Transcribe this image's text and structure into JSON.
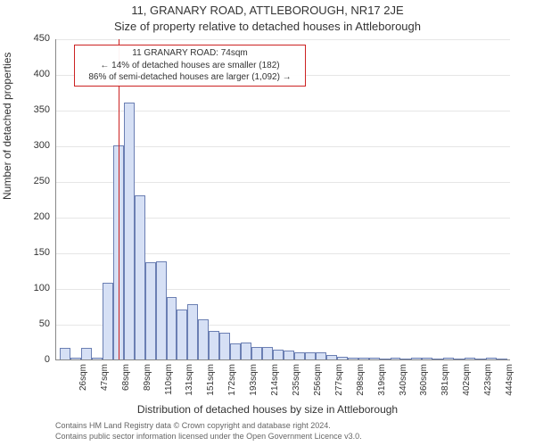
{
  "title1": "11, GRANARY ROAD, ATTLEBOROUGH, NR17 2JE",
  "title2": "Size of property relative to detached houses in Attleborough",
  "ylabel": "Number of detached properties",
  "xlabel": "Distribution of detached houses by size in Attleborough",
  "chart": {
    "type": "histogram",
    "ylim": [
      0,
      450
    ],
    "ytick_step": 50,
    "yticks": [
      0,
      50,
      100,
      150,
      200,
      250,
      300,
      350,
      400,
      450
    ],
    "bar_fill": "#d6e0f5",
    "bar_stroke": "#6b7fb3",
    "grid_color": "#e6e6e6",
    "axis_color": "#888888",
    "background": "#ffffff",
    "label_fontsize": 11,
    "title_fontsize": 13,
    "marker_x": 74,
    "marker_color": "#cc2222",
    "x_start": 16,
    "x_step": 10.5,
    "bar_count": 42,
    "values": [
      16,
      2,
      16,
      2,
      108,
      300,
      360,
      230,
      136,
      138,
      88,
      70,
      78,
      56,
      40,
      38,
      22,
      24,
      18,
      18,
      14,
      12,
      10,
      10,
      10,
      6,
      4,
      2,
      2,
      2,
      0,
      2,
      0,
      2,
      2,
      0,
      2,
      0,
      2,
      0,
      2,
      0
    ],
    "xticks": [
      {
        "i": 1,
        "label": "26sqm"
      },
      {
        "i": 3,
        "label": "47sqm"
      },
      {
        "i": 5,
        "label": "68sqm"
      },
      {
        "i": 7,
        "label": "89sqm"
      },
      {
        "i": 9,
        "label": "110sqm"
      },
      {
        "i": 11,
        "label": "131sqm"
      },
      {
        "i": 13,
        "label": "151sqm"
      },
      {
        "i": 15,
        "label": "172sqm"
      },
      {
        "i": 17,
        "label": "193sqm"
      },
      {
        "i": 19,
        "label": "214sqm"
      },
      {
        "i": 21,
        "label": "235sqm"
      },
      {
        "i": 23,
        "label": "256sqm"
      },
      {
        "i": 25,
        "label": "277sqm"
      },
      {
        "i": 27,
        "label": "298sqm"
      },
      {
        "i": 29,
        "label": "319sqm"
      },
      {
        "i": 31,
        "label": "340sqm"
      },
      {
        "i": 33,
        "label": "360sqm"
      },
      {
        "i": 35,
        "label": "381sqm"
      },
      {
        "i": 37,
        "label": "402sqm"
      },
      {
        "i": 39,
        "label": "423sqm"
      },
      {
        "i": 41,
        "label": "444sqm"
      }
    ]
  },
  "annotation": {
    "line1": "11 GRANARY ROAD: 74sqm",
    "line2": "← 14% of detached houses are smaller (182)",
    "line3": "86% of semi-detached houses are larger (1,092) →",
    "border_color": "#cc2222"
  },
  "credits": {
    "line1": "Contains HM Land Registry data © Crown copyright and database right 2024.",
    "line2": "Contains public sector information licensed under the Open Government Licence v3.0."
  }
}
